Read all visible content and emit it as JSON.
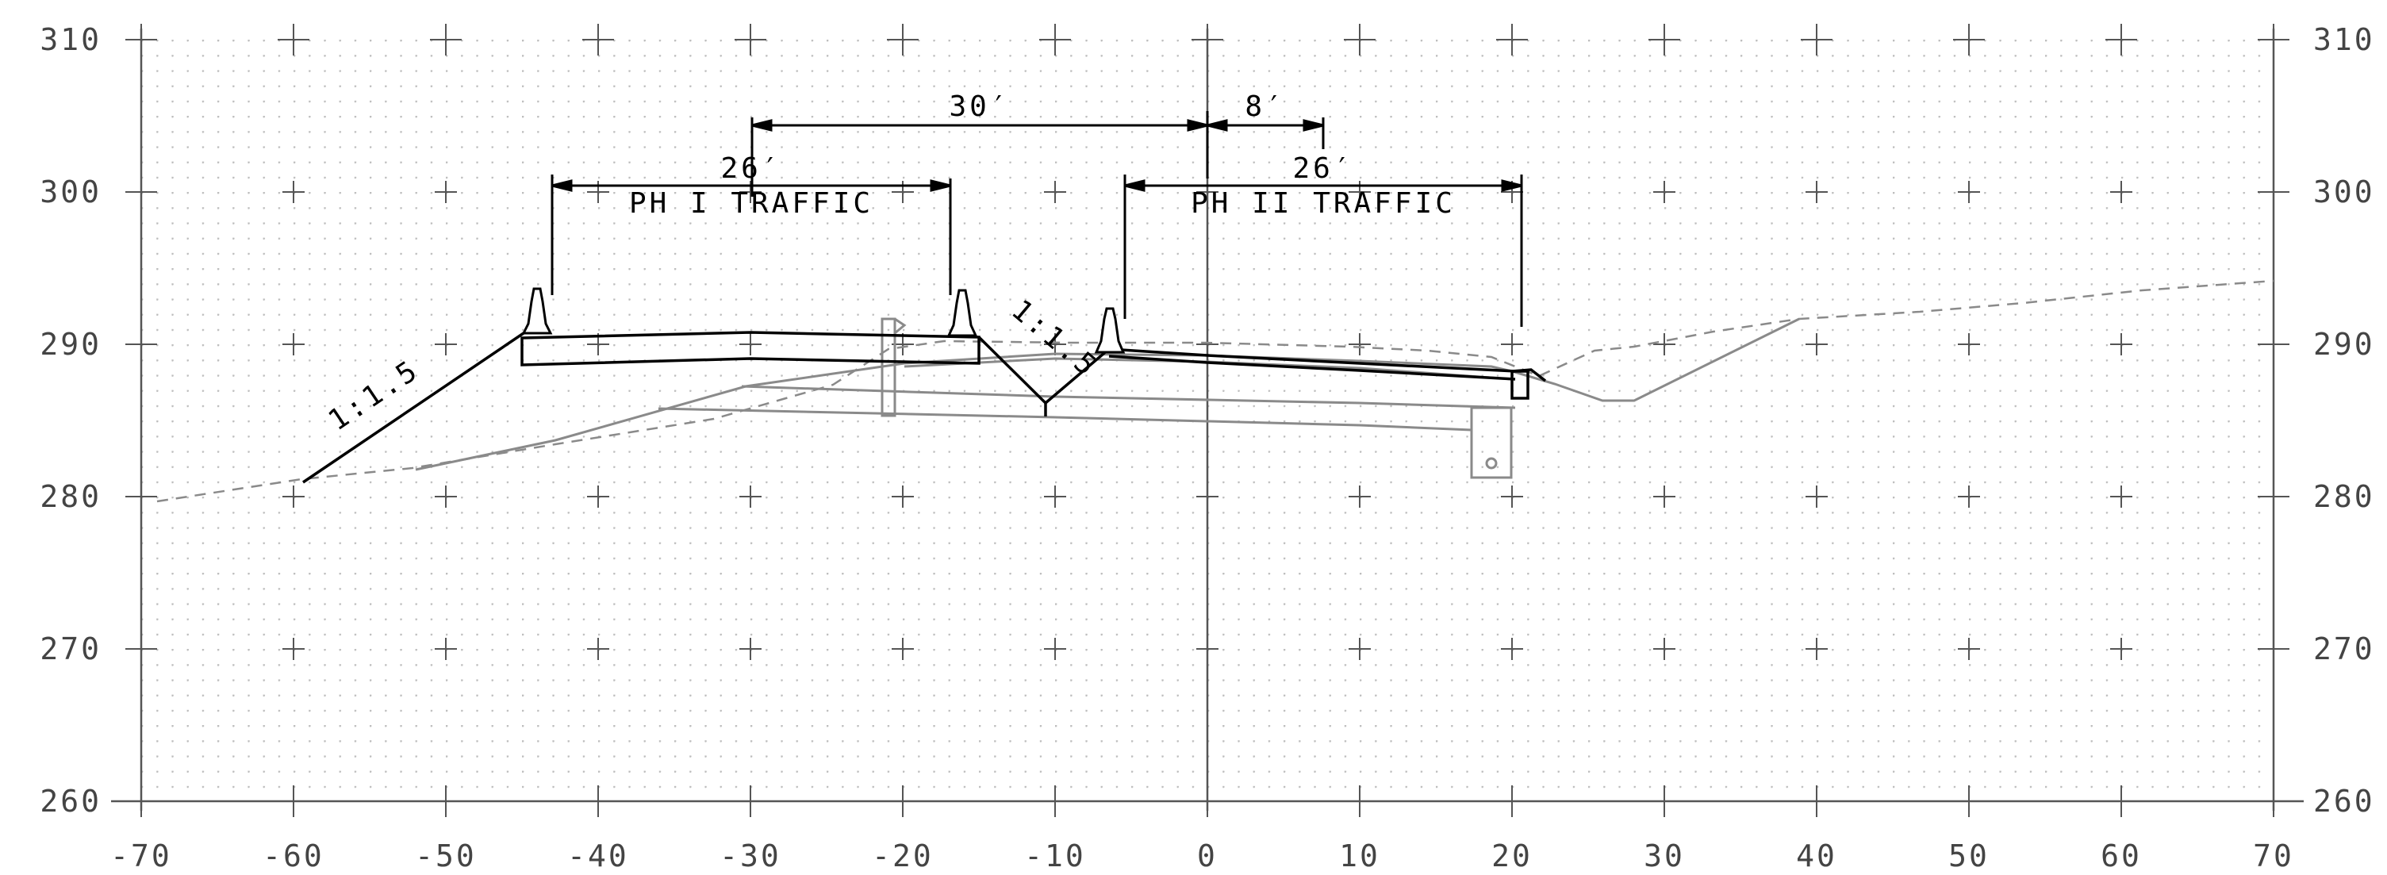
{
  "axes": {
    "x_ticks": [
      "-70",
      "-60",
      "-50",
      "-40",
      "-30",
      "-20",
      "-10",
      "0",
      "10",
      "20",
      "30",
      "40",
      "50",
      "60",
      "70"
    ],
    "y_ticks": [
      "260",
      "270",
      "280",
      "290",
      "300",
      "310"
    ]
  },
  "dimensions": {
    "d30": "30′",
    "d8": "8′",
    "d26_left": "26′",
    "d26_right": "26′"
  },
  "labels": {
    "ph1": "PH I TRAFFIC",
    "ph2": "PH II TRAFFIC",
    "slope_left": "1:1.5",
    "slope_median": "1:1.5"
  },
  "colors": {
    "grid_dot": "#bdbdbd",
    "axis": "#555555",
    "proposed": "#000000",
    "existing": "#8a8a8a"
  }
}
